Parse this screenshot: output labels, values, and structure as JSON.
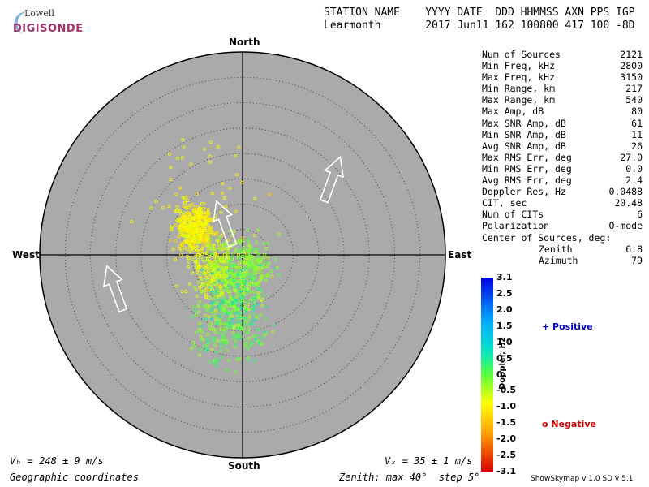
{
  "logo": {
    "top": "Lowell",
    "main": "DIGISONDE"
  },
  "header": {
    "line1": "STATION NAME    YYYY DATE  DDD HHMMSS AXN PPS IGP",
    "line2": "Learmonth       2017 Jun11 162 100800 417 100 -8D"
  },
  "stats": [
    {
      "label": "Num of Sources",
      "value": "2121"
    },
    {
      "label": "Min Freq, kHz",
      "value": "2800"
    },
    {
      "label": "Max Freq, kHz",
      "value": "3150"
    },
    {
      "label": "Min Range, km",
      "value": "217"
    },
    {
      "label": "Max Range, km",
      "value": "540"
    },
    {
      "label": "Max Amp, dB",
      "value": "80"
    },
    {
      "label": "Max SNR Amp, dB",
      "value": "61"
    },
    {
      "label": "Min SNR Amp, dB",
      "value": "11"
    },
    {
      "label": "Avg SNR Amp, dB",
      "value": "26"
    },
    {
      "label": "Max RMS Err, deg",
      "value": "27.0"
    },
    {
      "label": "Min RMS Err, deg",
      "value": "0.0"
    },
    {
      "label": "Avg RMS Err, deg",
      "value": "2.4"
    },
    {
      "label": "Doppler Res, Hz",
      "value": "0.0488"
    },
    {
      "label": "CIT, sec",
      "value": "20.48"
    },
    {
      "label": "Num of CITs",
      "value": "6"
    },
    {
      "label": "Polarization",
      "value": "O-mode"
    }
  ],
  "center": {
    "heading": "Center of Sources, deg:",
    "zenith_label": "Zenith",
    "zenith_value": "6.8",
    "azimuth_label": "Azimuth",
    "azimuth_value": "79"
  },
  "compass": {
    "north": "North",
    "south": "South",
    "east": "East",
    "west": "West"
  },
  "bottom": {
    "vh": "Vₕ = 248 ± 9 m/s",
    "vz": "Vₓ = 35 ± 1 m/s",
    "coords": "Geographic coordinates",
    "zenith": "Zenith: max 40°  step 5°"
  },
  "colorbar": {
    "axis_label": "Doppler, Hz",
    "ticks": [
      "3.1",
      "2.5",
      "2.0",
      "1.5",
      "1.0",
      "0.5",
      "0",
      "-0.5",
      "-1.0",
      "-1.5",
      "-2.0",
      "-2.5",
      "-3.1"
    ]
  },
  "legend": {
    "positive": "Positive",
    "negative": "Negative"
  },
  "footer": {
    "version": "ShowSkymap v 1.0   SD v 5.1"
  },
  "colors": {
    "disk": "#aaaaaa",
    "positive": "#0000cc",
    "negative": "#cc0000"
  },
  "chart_data": {
    "type": "scatter",
    "projection": "polar-skymap",
    "zenith_max_deg": 40,
    "zenith_step_deg": 5,
    "doppler_range_hz": [
      -3.1,
      3.1
    ],
    "clusters": [
      {
        "zenith_deg": 11.0,
        "azimuth_deg": 300,
        "doppler_hz": -1.0,
        "count": 420,
        "spread_deg": 2.5
      },
      {
        "zenith_deg": 6.0,
        "azimuth_deg": 250,
        "doppler_hz": -0.8,
        "count": 200,
        "spread_deg": 3.5
      },
      {
        "zenith_deg": 4.0,
        "azimuth_deg": 200,
        "doppler_hz": -0.4,
        "count": 220,
        "spread_deg": 4.0
      },
      {
        "zenith_deg": 12.0,
        "azimuth_deg": 190,
        "doppler_hz": -0.3,
        "count": 160,
        "spread_deg": 5.0
      },
      {
        "zenith_deg": 2.0,
        "azimuth_deg": 120,
        "doppler_hz": -0.2,
        "count": 120,
        "spread_deg": 3.0
      },
      {
        "zenith_deg": 13.0,
        "azimuth_deg": 320,
        "doppler_hz": -1.0,
        "count": 60,
        "spread_deg": 7.0
      },
      {
        "zenith_deg": 16.0,
        "azimuth_deg": 190,
        "doppler_hz": 0.1,
        "count": 80,
        "spread_deg": 5.0
      }
    ],
    "positive_count": 180,
    "arrows": [
      {
        "zenith_deg": 23,
        "azimuth_deg": 50,
        "direction_deg": 20
      },
      {
        "zenith_deg": 26,
        "azimuth_deg": 255,
        "direction_deg": 340
      },
      {
        "zenith_deg": 7,
        "azimuth_deg": 330,
        "direction_deg": 340
      }
    ]
  }
}
